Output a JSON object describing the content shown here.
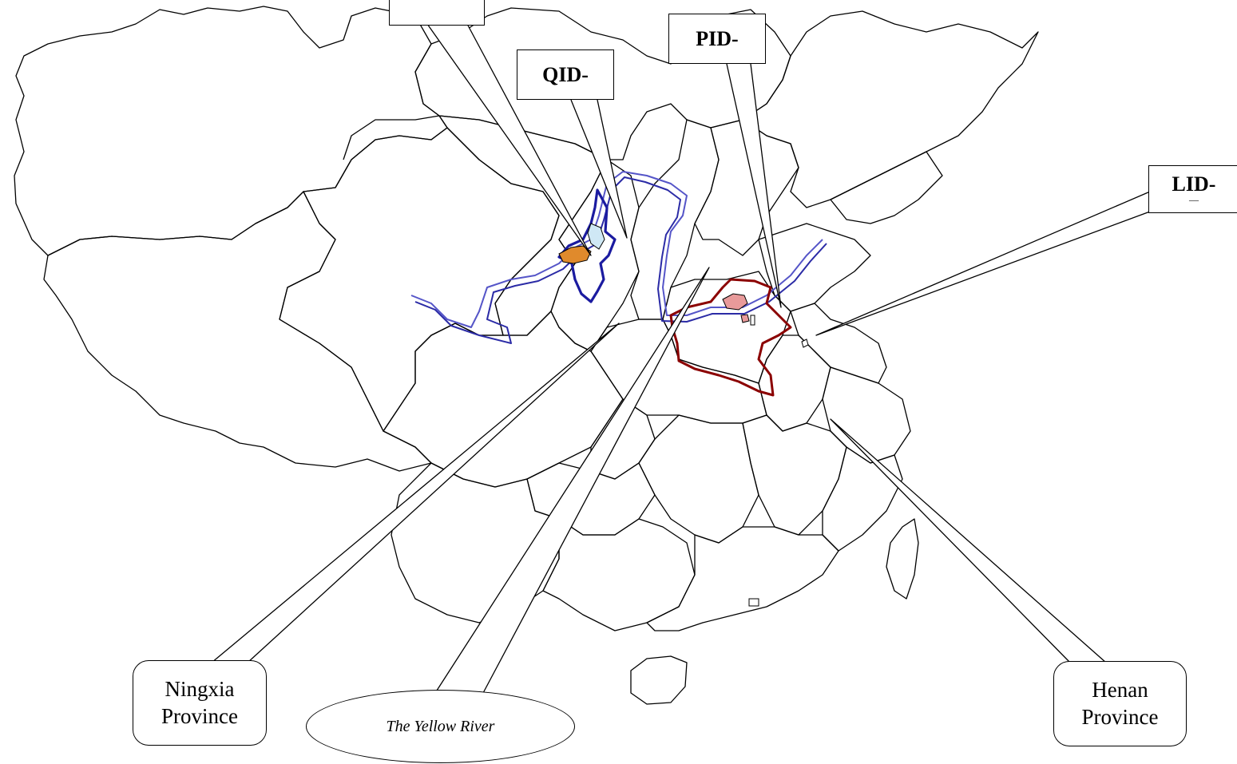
{
  "callouts": {
    "top_left_label": "",
    "qid_label": "QID-",
    "pid_label": "PID-",
    "lid_label": "LID-",
    "lid_sub": "––"
  },
  "regions": {
    "ningxia_line1": "Ningxia",
    "ningxia_line2": "Province",
    "henan_line1": "Henan",
    "henan_line2": "Province"
  },
  "river": {
    "label": "The Yellow River"
  },
  "colors": {
    "boundary": "#000000",
    "river_primary": "#2b2ba6",
    "river_secondary": "#5555c8",
    "highlight_blue": "#1b1ba0",
    "highlight_red": "#8b0000",
    "patch_orange": "#e08a2c",
    "patch_pink": "#e89a9a",
    "patch_lightblue": "#cfe8f5"
  }
}
